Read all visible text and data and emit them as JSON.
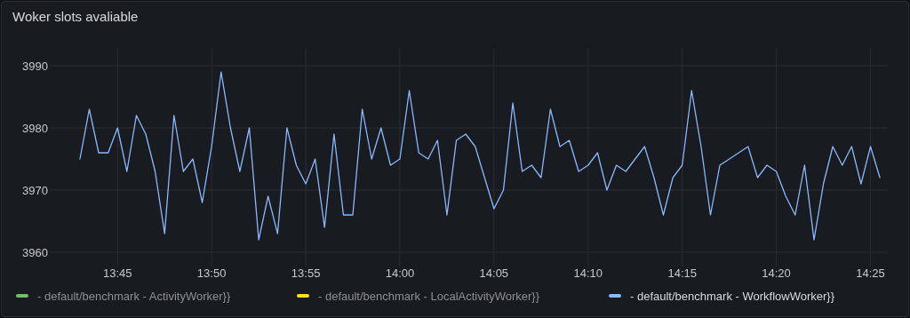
{
  "chart_data": {
    "type": "line",
    "title": "Woker slots avaliable",
    "x": [
      13.7167,
      13.725,
      13.7333,
      13.7417,
      13.75,
      13.7583,
      13.7667,
      13.775,
      13.7833,
      13.7917,
      13.8,
      13.8083,
      13.8167,
      13.825,
      13.8333,
      13.8417,
      13.85,
      13.8583,
      13.8667,
      13.875,
      13.8833,
      13.8917,
      13.9,
      13.9083,
      13.9167,
      13.925,
      13.9333,
      13.9417,
      13.95,
      13.9583,
      13.9667,
      13.975,
      13.9833,
      13.9917,
      14,
      14.0083,
      14.0167,
      14.025,
      14.0333,
      14.0417,
      14.05,
      14.0583,
      14.0667,
      14.075,
      14.0833,
      14.0917,
      14.1,
      14.1083,
      14.1167,
      14.125,
      14.1333,
      14.1417,
      14.15,
      14.1583,
      14.1667,
      14.175,
      14.1833,
      14.1917,
      14.2,
      14.2083,
      14.2167,
      14.225,
      14.2333,
      14.2417,
      14.25,
      14.2583,
      14.2667,
      14.275,
      14.2833,
      14.2917,
      14.3,
      14.3083,
      14.3167,
      14.325,
      14.3333,
      14.3417,
      14.35,
      14.3583,
      14.3667,
      14.375,
      14.3833,
      14.3917,
      14.4,
      14.4083,
      14.4167,
      14.425
    ],
    "series": [
      {
        "name": "- default/benchmark - ActivityWorker}}",
        "color": "#73bf69",
        "values": [
          null,
          null,
          null,
          null,
          null,
          null,
          null,
          null,
          null,
          null,
          null,
          null,
          null,
          null,
          null,
          null,
          null,
          null,
          null,
          null,
          null,
          null,
          null,
          null,
          null,
          null,
          null,
          null,
          null,
          null,
          null,
          null,
          null,
          null,
          null,
          null,
          null,
          null,
          null,
          null,
          null,
          null,
          null,
          null,
          null,
          null,
          null,
          null,
          null,
          null,
          null,
          null,
          null,
          null,
          null,
          null,
          null,
          null,
          null,
          null,
          null,
          null,
          null,
          null,
          null,
          null,
          null,
          null,
          null,
          null,
          null,
          null,
          null,
          null,
          null,
          null,
          null,
          null,
          null,
          null,
          null,
          null,
          null,
          null,
          null,
          null
        ]
      },
      {
        "name": "- default/benchmark - LocalActivityWorker}}",
        "color": "#fade2a",
        "values": [
          null,
          null,
          null,
          null,
          null,
          null,
          null,
          null,
          null,
          null,
          null,
          null,
          null,
          null,
          null,
          null,
          null,
          null,
          null,
          null,
          null,
          null,
          null,
          null,
          null,
          null,
          null,
          null,
          null,
          null,
          null,
          null,
          null,
          null,
          null,
          null,
          null,
          null,
          null,
          null,
          null,
          null,
          null,
          null,
          null,
          null,
          null,
          null,
          null,
          null,
          null,
          null,
          null,
          null,
          null,
          null,
          null,
          null,
          null,
          null,
          null,
          null,
          null,
          null,
          null,
          null,
          null,
          null,
          null,
          null,
          null,
          null,
          null,
          null,
          null,
          null,
          null,
          null,
          null,
          null,
          null,
          null,
          null,
          null,
          null,
          null
        ]
      },
      {
        "name": "- default/benchmark - WorkflowWorker}}",
        "color": "#8ab8ff",
        "values": [
          3975,
          3983,
          3976,
          3976,
          3980,
          3973,
          3982,
          3979,
          3973,
          3963,
          3982,
          3973,
          3975,
          3968,
          3977,
          3989,
          3980,
          3973,
          3980,
          3962,
          3969,
          3963,
          3980,
          3974,
          3971,
          3975,
          3964,
          3979,
          3966,
          3966,
          3983,
          3975,
          3980,
          3974,
          3975,
          3986,
          3976,
          3975,
          3978,
          3966,
          3978,
          3979,
          3977,
          3972,
          3967,
          3970,
          3984,
          3973,
          3974,
          3972,
          3983,
          3977,
          3978,
          3973,
          3974,
          3976,
          3970,
          3974,
          3973,
          3975,
          3977,
          3972,
          3966,
          3972,
          3974,
          3986,
          3977,
          3966,
          3974,
          3975,
          3976,
          3977,
          3972,
          3974,
          3973,
          3969,
          3966,
          3974,
          3962,
          3971,
          3977,
          3974,
          3977,
          3971,
          3977,
          3972
        ]
      }
    ],
    "xticks": [
      {
        "value": 13.75,
        "label": "13:45"
      },
      {
        "value": 13.8333,
        "label": "13:50"
      },
      {
        "value": 13.9167,
        "label": "13:55"
      },
      {
        "value": 14,
        "label": "14:00"
      },
      {
        "value": 14.0833,
        "label": "14:05"
      },
      {
        "value": 14.1667,
        "label": "14:10"
      },
      {
        "value": 14.25,
        "label": "14:15"
      },
      {
        "value": 14.3333,
        "label": "14:20"
      },
      {
        "value": 14.4167,
        "label": "14:25"
      }
    ],
    "xlim": [
      13.69,
      14.432
    ],
    "ylim": [
      3960,
      3990
    ],
    "yticks": [
      3960,
      3970,
      3980,
      3990
    ],
    "grid": true,
    "legend": "bottom left",
    "marker": "none",
    "line_style": "solid"
  }
}
